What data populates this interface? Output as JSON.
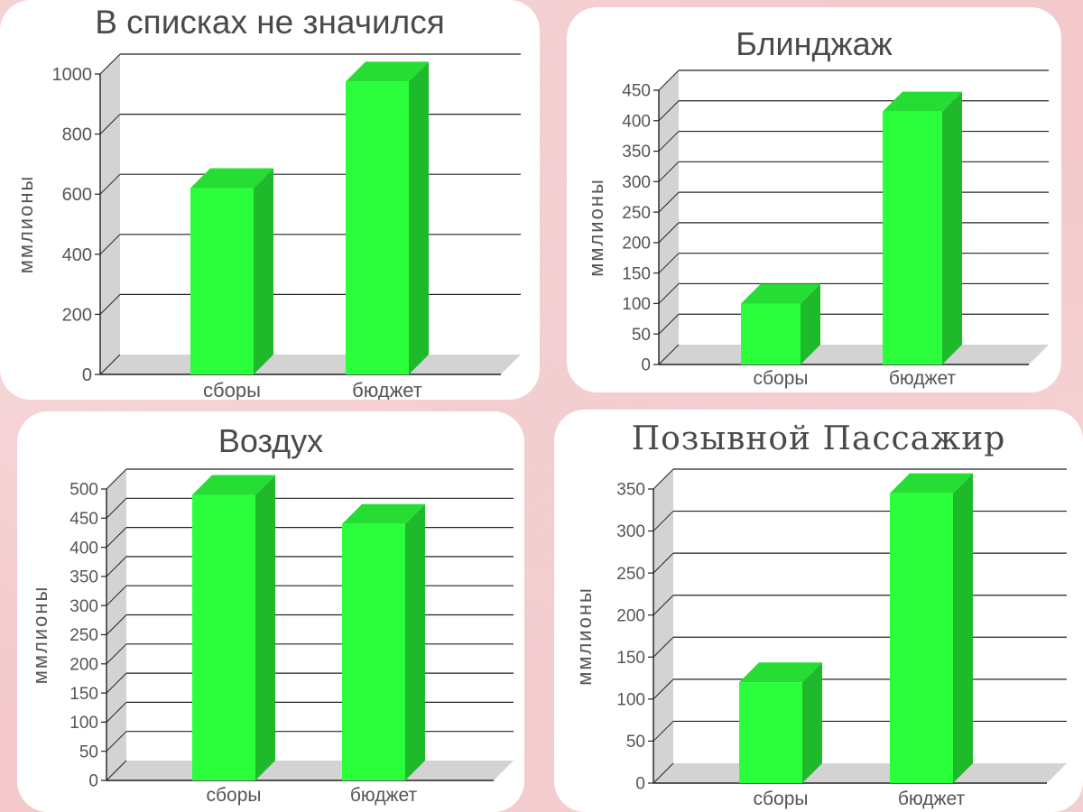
{
  "colors": {
    "bar_front": "#2bff3c",
    "bar_side": "#1fba2b",
    "bar_top": "#26dd34",
    "wall": "#d3d3d3",
    "grid": "#222222",
    "text": "#555555"
  },
  "chart_data": [
    {
      "type": "bar",
      "title": "В списках не значился",
      "categories": [
        "сборы",
        "бюджет"
      ],
      "values": [
        620,
        975
      ],
      "ylabel": "ммлионы",
      "ylim": [
        0,
        1000
      ],
      "yticks": [
        0,
        200,
        400,
        600,
        800,
        1000
      ],
      "grid": true,
      "style": "3d"
    },
    {
      "type": "bar",
      "title": "Блинджаж",
      "categories": [
        "сборы",
        "бюджет"
      ],
      "values": [
        100,
        415
      ],
      "ylabel": "ммлионы",
      "ylim": [
        0,
        450
      ],
      "yticks": [
        0,
        50,
        100,
        150,
        200,
        250,
        300,
        350,
        400,
        450
      ],
      "grid": true,
      "style": "3d"
    },
    {
      "type": "bar",
      "title": "Воздух",
      "categories": [
        "сборы",
        "бюджет"
      ],
      "values": [
        490,
        440
      ],
      "ylabel": "ммлионы",
      "ylim": [
        0,
        500
      ],
      "yticks": [
        0,
        50,
        100,
        150,
        200,
        250,
        300,
        350,
        400,
        450,
        500
      ],
      "grid": true,
      "style": "3d"
    },
    {
      "type": "bar",
      "title": "Позывной Пассажир",
      "categories": [
        "сборы",
        "бюджет"
      ],
      "values": [
        120,
        345
      ],
      "ylabel": "ммлионы",
      "ylim": [
        0,
        350
      ],
      "yticks": [
        0,
        50,
        100,
        150,
        200,
        250,
        300,
        350
      ],
      "grid": true,
      "style": "3d"
    }
  ]
}
